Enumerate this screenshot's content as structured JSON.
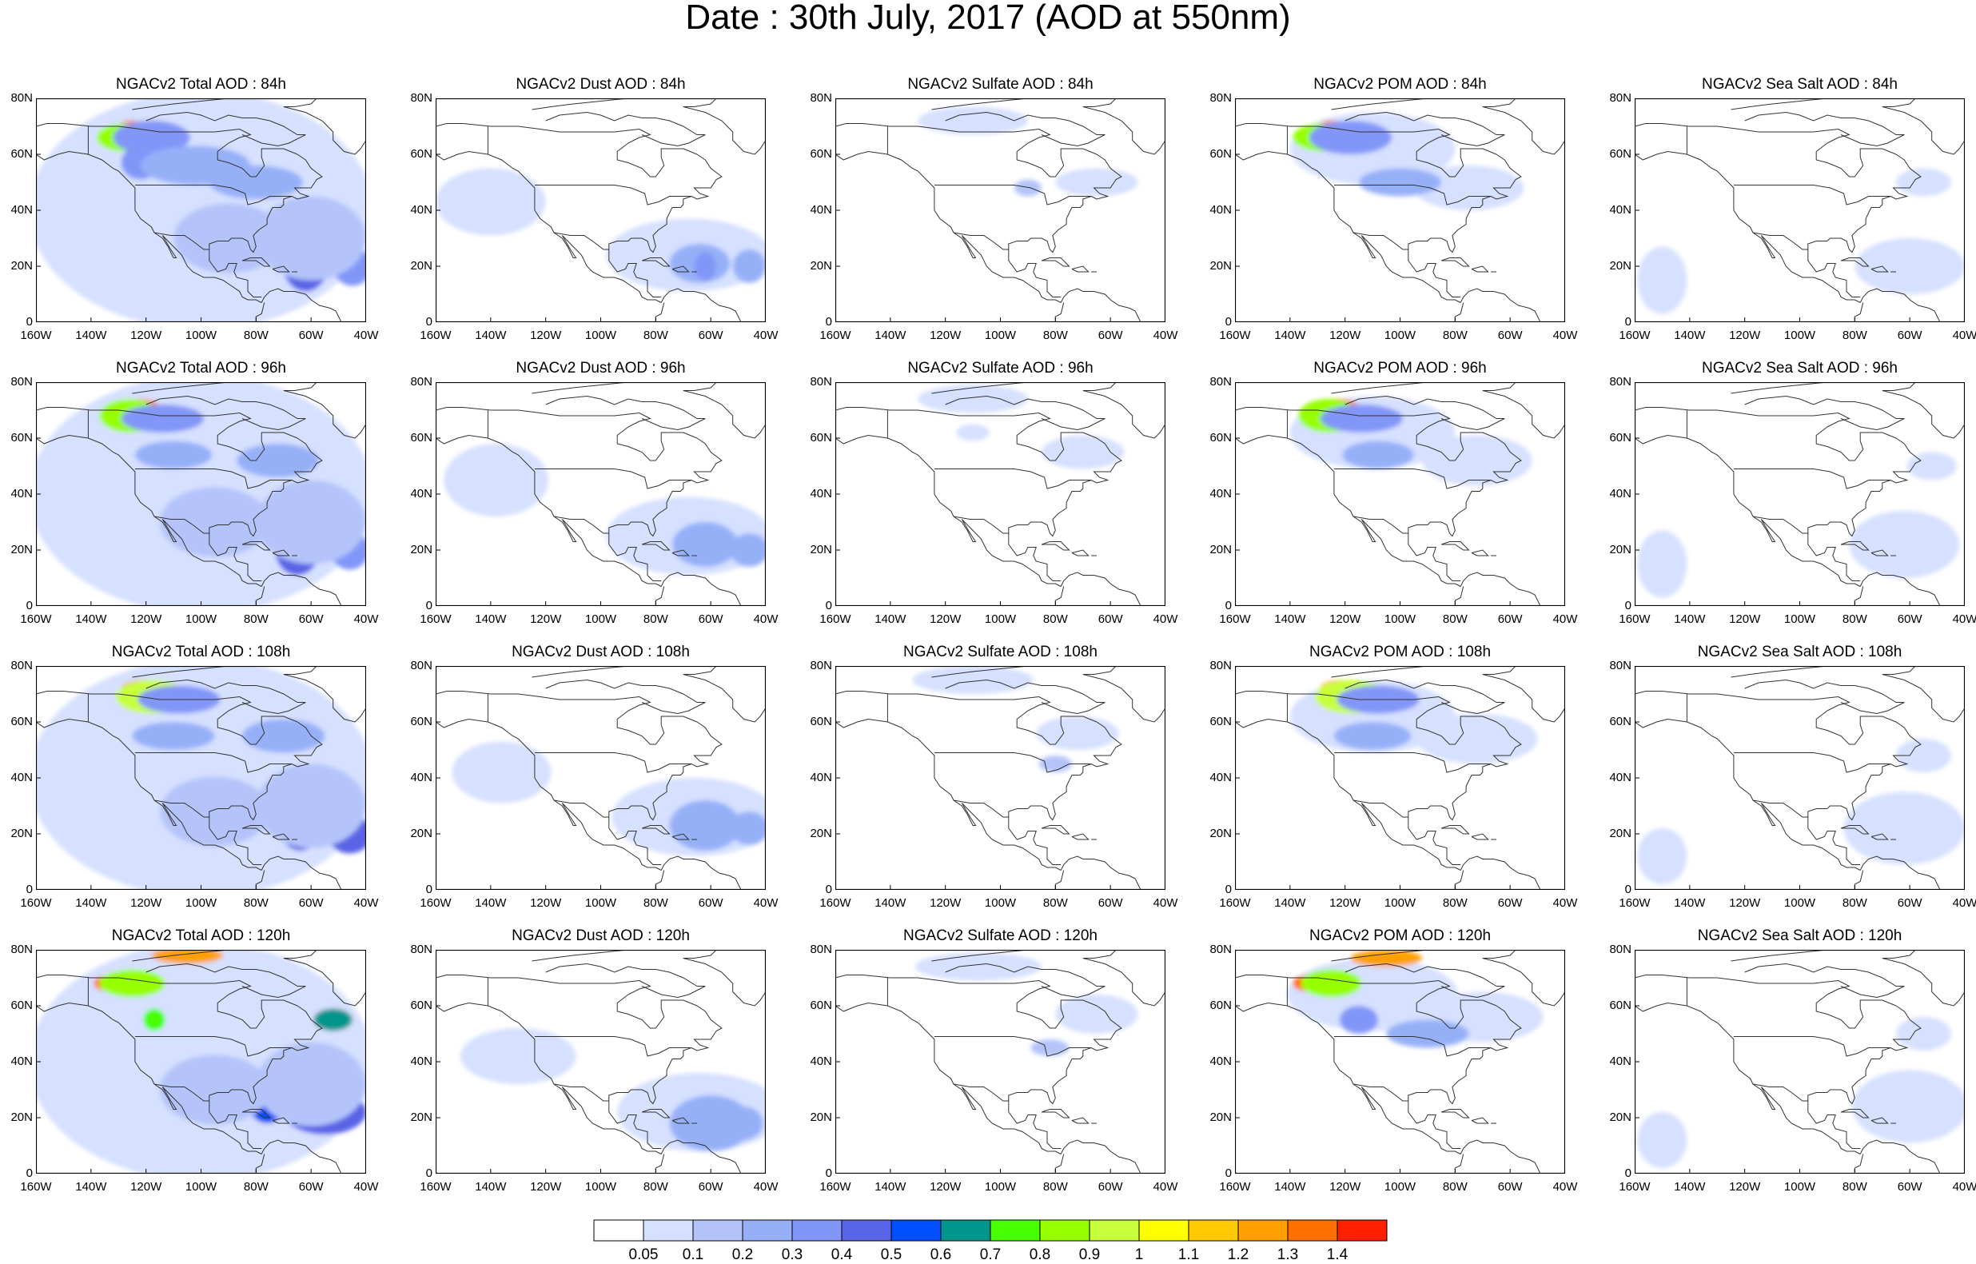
{
  "title": "Date : 30th July, 2017 (AOD at 550nm)",
  "colors": {
    "background": "#ffffff",
    "coastline": "#333333",
    "frame": "#000000"
  },
  "x_tick_labels": [
    "160W",
    "140W",
    "120W",
    "100W",
    "80W",
    "60W",
    "40W"
  ],
  "y_tick_labels": [
    "80N",
    "60N",
    "40N",
    "20N",
    "0"
  ],
  "map_extent": {
    "lon_min": -160,
    "lon_max": -40,
    "lat_min": 0,
    "lat_max": 80
  },
  "columns": [
    {
      "species": "total",
      "titles": [
        "NGACv2 Total AOD : 84h",
        "NGACv2 Total AOD : 96h",
        "NGACv2 Total AOD : 108h",
        "NGACv2 Total AOD : 120h"
      ]
    },
    {
      "species": "dust",
      "titles": [
        "NGACv2 Dust AOD : 84h",
        "NGACv2 Dust AOD : 96h",
        "NGACv2 Dust AOD : 108h",
        "NGACv2 Dust AOD : 120h"
      ]
    },
    {
      "species": "sulfate",
      "titles": [
        "NGACv2 Sulfate AOD : 84h",
        "NGACv2 Sulfate AOD : 96h",
        "NGACv2 Sulfate AOD : 108h",
        "NGACv2 Sulfate AOD : 120h"
      ]
    },
    {
      "species": "pom",
      "titles": [
        "NGACv2 POM AOD : 84h",
        "NGACv2 POM AOD : 96h",
        "NGACv2 POM AOD : 108h",
        "NGACv2 POM AOD : 120h"
      ]
    },
    {
      "species": "seasalt",
      "titles": [
        "NGACv2 Sea Salt AOD : 84h",
        "NGACv2 Sea Salt AOD : 96h",
        "NGACv2 Sea Salt AOD : 108h",
        "NGACv2 Sea Salt  AOD : 120h"
      ]
    }
  ],
  "colorbar": {
    "colors": [
      "#ffffff",
      "#d6e0ff",
      "#b4c4fa",
      "#96b0f8",
      "#8296f8",
      "#5a64e6",
      "#0050ff",
      "#00968c",
      "#46ff00",
      "#96ff00",
      "#c8ff3c",
      "#ffff00",
      "#ffc800",
      "#ffa000",
      "#ff7000",
      "#ff2000"
    ],
    "labels": [
      "0.05",
      "0.1",
      "0.2",
      "0.3",
      "0.4",
      "0.5",
      "0.6",
      "0.7",
      "0.8",
      "0.9",
      "1",
      "1.1",
      "1.2",
      "1.3",
      "1.4"
    ]
  },
  "aod_features": {
    "total": [
      [
        {
          "lon": -100,
          "lat": 40,
          "w": 125,
          "h": 85,
          "level": 1
        },
        {
          "lon": -125,
          "lat": 69,
          "w": 12,
          "h": 6,
          "level": 14
        },
        {
          "lon": -128,
          "lat": 66,
          "w": 20,
          "h": 10,
          "level": 9
        },
        {
          "lon": -118,
          "lat": 66,
          "w": 28,
          "h": 12,
          "level": 4
        },
        {
          "lon": -122,
          "lat": 57,
          "w": 14,
          "h": 12,
          "level": 4
        },
        {
          "lon": -102,
          "lat": 56,
          "w": 40,
          "h": 14,
          "level": 3
        },
        {
          "lon": -80,
          "lat": 50,
          "w": 34,
          "h": 12,
          "level": 3
        },
        {
          "lon": -62,
          "lat": 20,
          "w": 16,
          "h": 18,
          "level": 5
        },
        {
          "lon": -64,
          "lat": 19,
          "w": 5,
          "h": 8,
          "level": 7
        },
        {
          "lon": -45,
          "lat": 20,
          "w": 14,
          "h": 14,
          "level": 4
        },
        {
          "lon": -60,
          "lat": 30,
          "w": 40,
          "h": 30,
          "level": 2
        },
        {
          "lon": -90,
          "lat": 30,
          "w": 40,
          "h": 25,
          "level": 2
        }
      ],
      [
        {
          "lon": -100,
          "lat": 40,
          "w": 125,
          "h": 85,
          "level": 1
        },
        {
          "lon": -123,
          "lat": 71,
          "w": 16,
          "h": 6,
          "level": 14
        },
        {
          "lon": -126,
          "lat": 68,
          "w": 22,
          "h": 12,
          "level": 9
        },
        {
          "lon": -114,
          "lat": 67,
          "w": 30,
          "h": 10,
          "level": 4
        },
        {
          "lon": -110,
          "lat": 54,
          "w": 28,
          "h": 10,
          "level": 3
        },
        {
          "lon": -72,
          "lat": 52,
          "w": 30,
          "h": 12,
          "level": 3
        },
        {
          "lon": -65,
          "lat": 20,
          "w": 16,
          "h": 18,
          "level": 5
        },
        {
          "lon": -46,
          "lat": 20,
          "w": 14,
          "h": 14,
          "level": 4
        },
        {
          "lon": -60,
          "lat": 30,
          "w": 40,
          "h": 30,
          "level": 2
        },
        {
          "lon": -95,
          "lat": 30,
          "w": 40,
          "h": 25,
          "level": 2
        }
      ],
      [
        {
          "lon": -100,
          "lat": 40,
          "w": 125,
          "h": 85,
          "level": 1
        },
        {
          "lon": -120,
          "lat": 72,
          "w": 18,
          "h": 6,
          "level": 14
        },
        {
          "lon": -118,
          "lat": 69,
          "w": 26,
          "h": 12,
          "level": 10
        },
        {
          "lon": -108,
          "lat": 68,
          "w": 30,
          "h": 10,
          "level": 4
        },
        {
          "lon": -110,
          "lat": 55,
          "w": 30,
          "h": 10,
          "level": 3
        },
        {
          "lon": -70,
          "lat": 55,
          "w": 30,
          "h": 12,
          "level": 3
        },
        {
          "lon": -64,
          "lat": 24,
          "w": 16,
          "h": 20,
          "level": 5
        },
        {
          "lon": -46,
          "lat": 20,
          "w": 16,
          "h": 14,
          "level": 5
        },
        {
          "lon": -60,
          "lat": 30,
          "w": 40,
          "h": 30,
          "level": 2
        },
        {
          "lon": -95,
          "lat": 28,
          "w": 40,
          "h": 25,
          "level": 2
        }
      ],
      [
        {
          "lon": -100,
          "lat": 40,
          "w": 125,
          "h": 85,
          "level": 1
        },
        {
          "lon": -105,
          "lat": 78,
          "w": 26,
          "h": 6,
          "level": 13
        },
        {
          "lon": -133,
          "lat": 68,
          "w": 12,
          "h": 6,
          "level": 14
        },
        {
          "lon": -125,
          "lat": 68,
          "w": 24,
          "h": 10,
          "level": 9
        },
        {
          "lon": -117,
          "lat": 55,
          "w": 8,
          "h": 8,
          "level": 8
        },
        {
          "lon": -52,
          "lat": 55,
          "w": 14,
          "h": 8,
          "level": 7
        },
        {
          "lon": -76,
          "lat": 26,
          "w": 14,
          "h": 16,
          "level": 6
        },
        {
          "lon": -55,
          "lat": 22,
          "w": 30,
          "h": 16,
          "level": 5
        },
        {
          "lon": -60,
          "lat": 32,
          "w": 40,
          "h": 30,
          "level": 2
        },
        {
          "lon": -95,
          "lat": 30,
          "w": 40,
          "h": 25,
          "level": 2
        }
      ]
    ],
    "dust": [
      [
        {
          "lon": -140,
          "lat": 43,
          "w": 40,
          "h": 24,
          "level": 1
        },
        {
          "lon": -68,
          "lat": 24,
          "w": 60,
          "h": 26,
          "level": 1
        },
        {
          "lon": -64,
          "lat": 21,
          "w": 22,
          "h": 14,
          "level": 3
        },
        {
          "lon": -62,
          "lat": 20,
          "w": 8,
          "h": 10,
          "level": 4
        },
        {
          "lon": -46,
          "lat": 20,
          "w": 12,
          "h": 12,
          "level": 3
        }
      ],
      [
        {
          "lon": -138,
          "lat": 45,
          "w": 38,
          "h": 26,
          "level": 1
        },
        {
          "lon": -68,
          "lat": 25,
          "w": 60,
          "h": 28,
          "level": 1
        },
        {
          "lon": -62,
          "lat": 22,
          "w": 24,
          "h": 16,
          "level": 3
        },
        {
          "lon": -46,
          "lat": 20,
          "w": 14,
          "h": 12,
          "level": 3
        }
      ],
      [
        {
          "lon": -136,
          "lat": 42,
          "w": 36,
          "h": 22,
          "level": 1
        },
        {
          "lon": -66,
          "lat": 26,
          "w": 60,
          "h": 28,
          "level": 1
        },
        {
          "lon": -62,
          "lat": 23,
          "w": 26,
          "h": 18,
          "level": 3
        },
        {
          "lon": -46,
          "lat": 22,
          "w": 14,
          "h": 12,
          "level": 3
        }
      ],
      [
        {
          "lon": -130,
          "lat": 42,
          "w": 42,
          "h": 20,
          "level": 1
        },
        {
          "lon": -64,
          "lat": 22,
          "w": 60,
          "h": 28,
          "level": 1
        },
        {
          "lon": -60,
          "lat": 18,
          "w": 30,
          "h": 20,
          "level": 3
        },
        {
          "lon": -48,
          "lat": 18,
          "w": 14,
          "h": 12,
          "level": 3
        }
      ]
    ],
    "sulfate": [
      [
        {
          "lon": -110,
          "lat": 72,
          "w": 40,
          "h": 10,
          "level": 1
        },
        {
          "lon": -65,
          "lat": 50,
          "w": 30,
          "h": 10,
          "level": 1
        },
        {
          "lon": -90,
          "lat": 48,
          "w": 10,
          "h": 6,
          "level": 2
        }
      ],
      [
        {
          "lon": -110,
          "lat": 74,
          "w": 40,
          "h": 10,
          "level": 1
        },
        {
          "lon": -70,
          "lat": 55,
          "w": 30,
          "h": 12,
          "level": 1
        },
        {
          "lon": -110,
          "lat": 62,
          "w": 12,
          "h": 6,
          "level": 1
        }
      ],
      [
        {
          "lon": -110,
          "lat": 75,
          "w": 44,
          "h": 10,
          "level": 1
        },
        {
          "lon": -72,
          "lat": 56,
          "w": 30,
          "h": 12,
          "level": 1
        },
        {
          "lon": -80,
          "lat": 45,
          "w": 12,
          "h": 6,
          "level": 2
        }
      ],
      [
        {
          "lon": -108,
          "lat": 74,
          "w": 46,
          "h": 10,
          "level": 1
        },
        {
          "lon": -65,
          "lat": 57,
          "w": 30,
          "h": 14,
          "level": 1
        },
        {
          "lon": -82,
          "lat": 45,
          "w": 14,
          "h": 6,
          "level": 2
        }
      ]
    ],
    "pom": [
      [
        {
          "lon": -110,
          "lat": 62,
          "w": 60,
          "h": 26,
          "level": 1
        },
        {
          "lon": -75,
          "lat": 48,
          "w": 40,
          "h": 16,
          "level": 1
        },
        {
          "lon": -125,
          "lat": 69,
          "w": 12,
          "h": 6,
          "level": 14
        },
        {
          "lon": -128,
          "lat": 66,
          "w": 22,
          "h": 10,
          "level": 9
        },
        {
          "lon": -118,
          "lat": 66,
          "w": 30,
          "h": 12,
          "level": 4
        },
        {
          "lon": -100,
          "lat": 50,
          "w": 30,
          "h": 10,
          "level": 3
        }
      ],
      [
        {
          "lon": -110,
          "lat": 62,
          "w": 60,
          "h": 26,
          "level": 1
        },
        {
          "lon": -72,
          "lat": 52,
          "w": 40,
          "h": 18,
          "level": 1
        },
        {
          "lon": -123,
          "lat": 71,
          "w": 16,
          "h": 6,
          "level": 14
        },
        {
          "lon": -126,
          "lat": 68,
          "w": 22,
          "h": 12,
          "level": 9
        },
        {
          "lon": -114,
          "lat": 67,
          "w": 30,
          "h": 10,
          "level": 4
        },
        {
          "lon": -108,
          "lat": 54,
          "w": 26,
          "h": 10,
          "level": 3
        }
      ],
      [
        {
          "lon": -110,
          "lat": 62,
          "w": 60,
          "h": 26,
          "level": 1
        },
        {
          "lon": -72,
          "lat": 54,
          "w": 44,
          "h": 18,
          "level": 1
        },
        {
          "lon": -120,
          "lat": 72,
          "w": 18,
          "h": 6,
          "level": 14
        },
        {
          "lon": -118,
          "lat": 69,
          "w": 26,
          "h": 12,
          "level": 10
        },
        {
          "lon": -108,
          "lat": 68,
          "w": 30,
          "h": 10,
          "level": 4
        },
        {
          "lon": -110,
          "lat": 55,
          "w": 28,
          "h": 10,
          "level": 3
        }
      ],
      [
        {
          "lon": -110,
          "lat": 64,
          "w": 62,
          "h": 26,
          "level": 1
        },
        {
          "lon": -70,
          "lat": 56,
          "w": 44,
          "h": 18,
          "level": 1
        },
        {
          "lon": -105,
          "lat": 77,
          "w": 26,
          "h": 6,
          "level": 13
        },
        {
          "lon": -133,
          "lat": 68,
          "w": 12,
          "h": 6,
          "level": 14
        },
        {
          "lon": -125,
          "lat": 68,
          "w": 22,
          "h": 10,
          "level": 9
        },
        {
          "lon": -115,
          "lat": 55,
          "w": 14,
          "h": 10,
          "level": 4
        },
        {
          "lon": -90,
          "lat": 50,
          "w": 30,
          "h": 10,
          "level": 3
        }
      ]
    ],
    "seasalt": [
      [
        {
          "lon": -150,
          "lat": 15,
          "w": 18,
          "h": 24,
          "level": 1
        },
        {
          "lon": -60,
          "lat": 20,
          "w": 40,
          "h": 20,
          "level": 1
        },
        {
          "lon": -55,
          "lat": 50,
          "w": 20,
          "h": 10,
          "level": 1
        }
      ],
      [
        {
          "lon": -150,
          "lat": 15,
          "w": 18,
          "h": 24,
          "level": 1
        },
        {
          "lon": -62,
          "lat": 22,
          "w": 40,
          "h": 24,
          "level": 1
        },
        {
          "lon": -52,
          "lat": 50,
          "w": 18,
          "h": 10,
          "level": 1
        }
      ],
      [
        {
          "lon": -150,
          "lat": 12,
          "w": 18,
          "h": 20,
          "level": 1
        },
        {
          "lon": -62,
          "lat": 22,
          "w": 44,
          "h": 26,
          "level": 1
        },
        {
          "lon": -55,
          "lat": 48,
          "w": 20,
          "h": 12,
          "level": 1
        }
      ],
      [
        {
          "lon": -150,
          "lat": 12,
          "w": 18,
          "h": 20,
          "level": 1
        },
        {
          "lon": -60,
          "lat": 24,
          "w": 42,
          "h": 26,
          "level": 1
        },
        {
          "lon": -55,
          "lat": 50,
          "w": 20,
          "h": 12,
          "level": 1
        }
      ]
    ]
  }
}
